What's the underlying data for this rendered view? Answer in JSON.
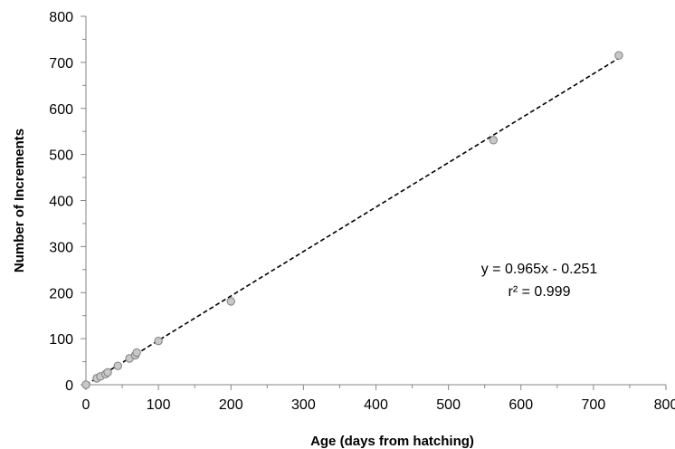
{
  "chart_data": {
    "type": "scatter",
    "title": "",
    "xlabel": "Age (days from hatching)",
    "ylabel": "Number of Increments",
    "xlim": [
      0,
      800
    ],
    "ylim": [
      0,
      800
    ],
    "x_ticks": [
      0,
      100,
      200,
      300,
      400,
      500,
      600,
      700,
      800
    ],
    "y_ticks": [
      0,
      100,
      200,
      300,
      400,
      500,
      600,
      700,
      800
    ],
    "grid": false,
    "legend": "none",
    "series": [
      {
        "points": [
          {
            "x": 0,
            "y": 0
          },
          {
            "x": 15,
            "y": 14
          },
          {
            "x": 20,
            "y": 18
          },
          {
            "x": 27,
            "y": 23
          },
          {
            "x": 30,
            "y": 27
          },
          {
            "x": 44,
            "y": 41
          },
          {
            "x": 60,
            "y": 57
          },
          {
            "x": 68,
            "y": 64
          },
          {
            "x": 70,
            "y": 70
          },
          {
            "x": 100,
            "y": 95
          },
          {
            "x": 200,
            "y": 181
          },
          {
            "x": 562,
            "y": 531
          },
          {
            "x": 735,
            "y": 715
          }
        ],
        "marker_color": "#c8c8c8",
        "marker_edge": "#7f7f7f"
      }
    ],
    "trendline": {
      "slope": 0.965,
      "intercept": -0.251,
      "x_range": [
        0,
        735
      ],
      "style": "dashed",
      "color": "#000000"
    },
    "annotations": {
      "equation": "y = 0.965x - 0.251",
      "r_squared": "r² = 0.999"
    }
  }
}
